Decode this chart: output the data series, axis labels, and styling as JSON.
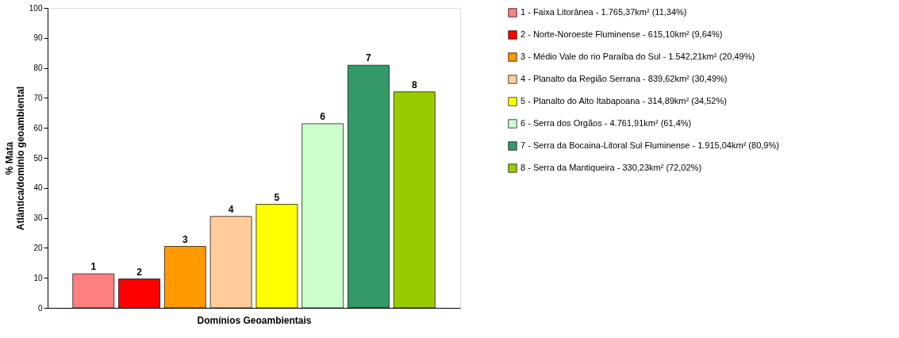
{
  "chart_data": {
    "type": "bar",
    "xlabel": "Domínios Geoambientais",
    "ylabel": "% Mata Atlântica/domínio geoambiental",
    "categories": [
      "1",
      "2",
      "3",
      "4",
      "5",
      "6",
      "7",
      "8"
    ],
    "ylim": [
      0,
      100
    ],
    "yticks": [
      0,
      10,
      20,
      30,
      40,
      50,
      60,
      70,
      80,
      90,
      100
    ],
    "tick_labels": "y",
    "grid": false,
    "legend": "right",
    "series": [
      {
        "name": "1 - Faixa Litorânea - 1.765,37km² (11,34%)",
        "color": "#ff8080",
        "values": [
          11.34,
          null,
          null,
          null,
          null,
          null,
          null,
          null
        ]
      },
      {
        "name": "2 - Norte-Noroeste Fluminense - 615,10km² (9,64%)",
        "color": "#ff0000",
        "values": [
          null,
          9.64,
          null,
          null,
          null,
          null,
          null,
          null
        ]
      },
      {
        "name": "3 - Médio Vale do rio Paraíba do Sul - 1.542,21km² (20,49%)",
        "color": "#ff9900",
        "values": [
          null,
          null,
          20.49,
          null,
          null,
          null,
          null,
          null
        ]
      },
      {
        "name": "4 - Planalto da Região Serrana - 839,62km² (30,49%)",
        "color": "#ffcc99",
        "values": [
          null,
          null,
          null,
          30.49,
          null,
          null,
          null,
          null
        ]
      },
      {
        "name": "5 - Planalto do Alto Itabapoana - 314,89km² (34,52%)",
        "color": "#ffff00",
        "values": [
          null,
          null,
          null,
          null,
          34.52,
          null,
          null,
          null
        ]
      },
      {
        "name": "6 - Serra dos Orgãos - 4.761,91km² (61,4%)",
        "color": "#ccffcc",
        "values": [
          null,
          null,
          null,
          null,
          null,
          61.4,
          null,
          null
        ]
      },
      {
        "name": "7 - Serra da Bocaina-Litoral Sul Fluminense - 1.915,04km² (80,9%)",
        "color": "#339966",
        "values": [
          null,
          null,
          null,
          null,
          null,
          null,
          80.9,
          null
        ]
      },
      {
        "name": "8 - Serra da Mantiqueira - 330,23km² (72,02%)",
        "color": "#99cc00",
        "values": [
          null,
          null,
          null,
          null,
          null,
          null,
          null,
          72.02
        ]
      }
    ]
  }
}
